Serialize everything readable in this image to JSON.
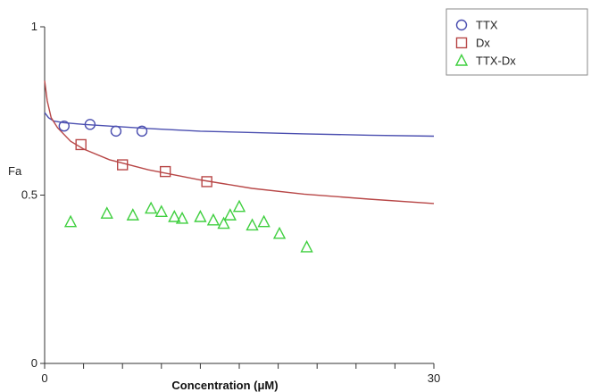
{
  "chart_data": {
    "type": "scatter",
    "xlabel": "Concentration (μM)",
    "ylabel": "Fa",
    "xlim": [
      0,
      30
    ],
    "ylim": [
      0,
      1
    ],
    "x_tick_labels": [
      "0",
      "30"
    ],
    "y_tick_labels": [
      "0",
      "0.5",
      "1"
    ],
    "x_minor_ticks": [
      0,
      3,
      6,
      9,
      12,
      15,
      18,
      21,
      24,
      27,
      30
    ],
    "grid": false,
    "legend_position": "top-right",
    "series": [
      {
        "name": "TTX",
        "marker": "circle",
        "color": "#4b4fb0",
        "points": [
          [
            1.5,
            0.705
          ],
          [
            3.5,
            0.71
          ],
          [
            5.5,
            0.69
          ],
          [
            7.5,
            0.69
          ]
        ],
        "fit_curve": {
          "color": "#4b4fb0",
          "x": [
            0,
            0.3,
            0.7,
            1.5,
            3,
            5,
            8,
            12,
            16,
            20,
            25,
            30
          ],
          "y": [
            0.745,
            0.73,
            0.72,
            0.715,
            0.71,
            0.705,
            0.698,
            0.69,
            0.686,
            0.682,
            0.678,
            0.675
          ]
        }
      },
      {
        "name": "Dx",
        "marker": "square",
        "color": "#b84747",
        "points": [
          [
            2.8,
            0.65
          ],
          [
            6.0,
            0.59
          ],
          [
            9.3,
            0.57
          ],
          [
            12.5,
            0.54
          ]
        ],
        "fit_curve": {
          "color": "#b84747",
          "x": [
            0,
            0.2,
            0.5,
            1,
            2,
            3,
            5,
            8,
            12,
            16,
            20,
            25,
            30
          ],
          "y": [
            0.84,
            0.78,
            0.73,
            0.7,
            0.66,
            0.637,
            0.605,
            0.575,
            0.545,
            0.52,
            0.503,
            0.488,
            0.475
          ]
        }
      },
      {
        "name": "TTX-Dx",
        "marker": "triangle",
        "color": "#3fcf3f",
        "points": [
          [
            2.0,
            0.42
          ],
          [
            4.8,
            0.445
          ],
          [
            6.8,
            0.44
          ],
          [
            8.2,
            0.46
          ],
          [
            9.0,
            0.45
          ],
          [
            10.0,
            0.435
          ],
          [
            10.6,
            0.43
          ],
          [
            12.0,
            0.435
          ],
          [
            13.0,
            0.425
          ],
          [
            13.8,
            0.415
          ],
          [
            14.3,
            0.44
          ],
          [
            15.0,
            0.465
          ],
          [
            16.0,
            0.41
          ],
          [
            16.9,
            0.42
          ],
          [
            18.1,
            0.385
          ],
          [
            20.2,
            0.345
          ]
        ]
      }
    ]
  }
}
